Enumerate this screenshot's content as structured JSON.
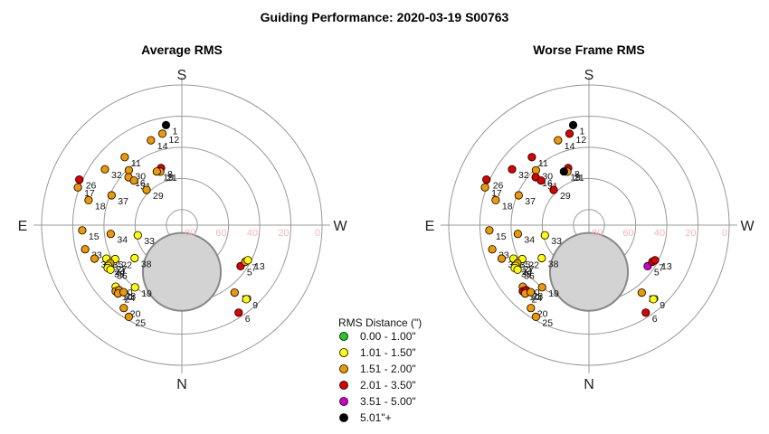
{
  "title": "Guiding Performance: 2020-03-19 S00763",
  "compass": {
    "top": "S",
    "bottom": "N",
    "left": "E",
    "right": "W"
  },
  "alt_ticks": [
    "80",
    "60",
    "40",
    "20",
    "0"
  ],
  "legend": {
    "title": "RMS Distance (\")",
    "items": [
      {
        "label": "0.00 - 1.00\"",
        "color": "#22cc22"
      },
      {
        "label": "1.01 - 1.50\"",
        "color": "#ffff00"
      },
      {
        "label": "1.51 - 2.00\"",
        "color": "#ee9900"
      },
      {
        "label": "2.01 - 3.50\"",
        "color": "#dd0000"
      },
      {
        "label": "3.51 - 5.00\"",
        "color": "#cc00cc"
      },
      {
        "label": "5.01\"+",
        "color": "#000000"
      }
    ]
  },
  "chart_data": [
    {
      "type": "scatter",
      "title": "Average RMS",
      "projection": "polar sky plot: azimuth in degrees (N=0 bottom, E=90 left, S=180 top, W=270 right), radius = 90 - altitude",
      "rlim": [
        0,
        90
      ],
      "shaded_region": {
        "azimuth": 0,
        "altitude": 60,
        "angular_radius": 25
      },
      "points": [
        {
          "label": "1",
          "az": 171,
          "alt": 25,
          "class": 6
        },
        {
          "label": "12",
          "az": 168,
          "alt": 30,
          "class": 3
        },
        {
          "label": "14",
          "az": 160,
          "alt": 32,
          "class": 3
        },
        {
          "label": "8",
          "az": 160,
          "alt": 51,
          "class": 4
        },
        {
          "label": "21",
          "az": 158,
          "alt": 53,
          "class": 3
        },
        {
          "label": "19",
          "az": 155,
          "alt": 52,
          "class": 3
        },
        {
          "label": "11",
          "az": 140,
          "alt": 33,
          "class": 3
        },
        {
          "label": "30",
          "az": 136,
          "alt": 41,
          "class": 3
        },
        {
          "label": "16",
          "az": 132,
          "alt": 44,
          "class": 3
        },
        {
          "label": "32",
          "az": 126,
          "alt": 29,
          "class": 3
        },
        {
          "label": "31",
          "az": 133,
          "alt": 48,
          "class": 3
        },
        {
          "label": "29",
          "az": 135,
          "alt": 58,
          "class": 3
        },
        {
          "label": "26",
          "az": 114,
          "alt": 18,
          "class": 4
        },
        {
          "label": "17",
          "az": 110,
          "alt": 19,
          "class": 3
        },
        {
          "label": "18",
          "az": 105,
          "alt": 28,
          "class": 3
        },
        {
          "label": "37",
          "az": 113,
          "alt": 41,
          "class": 3
        },
        {
          "label": "15",
          "az": 87,
          "alt": 26,
          "class": 3
        },
        {
          "label": "34",
          "az": 83,
          "alt": 44,
          "class": 3
        },
        {
          "label": "33",
          "az": 77,
          "alt": 61,
          "class": 2
        },
        {
          "label": "23",
          "az": 76,
          "alt": 26,
          "class": 3
        },
        {
          "label": "3",
          "az": 69,
          "alt": 30,
          "class": 3
        },
        {
          "label": "35",
          "az": 66,
          "alt": 37,
          "class": 2
        },
        {
          "label": "22",
          "az": 63,
          "alt": 42,
          "class": 2
        },
        {
          "label": "27",
          "az": 62,
          "alt": 38,
          "class": 3
        },
        {
          "label": "24",
          "az": 61,
          "alt": 36,
          "class": 2
        },
        {
          "label": "39",
          "az": 60,
          "alt": 35,
          "class": 2
        },
        {
          "label": "36",
          "az": 58,
          "alt": 36,
          "class": 2
        },
        {
          "label": "38",
          "az": 55,
          "alt": 53,
          "class": 2
        },
        {
          "label": "40",
          "az": 47,
          "alt": 32,
          "class": 2
        },
        {
          "label": "10",
          "az": 45,
          "alt": 30,
          "class": 3
        },
        {
          "label": "28",
          "az": 44,
          "alt": 32,
          "class": 3
        },
        {
          "label": "2",
          "az": 43,
          "alt": 30,
          "class": 3
        },
        {
          "label": "4",
          "az": 41,
          "alt": 33,
          "class": 3
        },
        {
          "label": "19",
          "az": 37,
          "alt": 40,
          "class": 2
        },
        {
          "label": "20",
          "az": 35,
          "alt": 25,
          "class": 3
        },
        {
          "label": "25",
          "az": 30,
          "alt": 22,
          "class": 3
        },
        {
          "label": "5",
          "az": 305,
          "alt": 44,
          "class": 4
        },
        {
          "label": "7",
          "az": 300,
          "alt": 43,
          "class": 3
        },
        {
          "label": "13",
          "az": 298,
          "alt": 42,
          "class": 2
        },
        {
          "label": "10",
          "az": 322,
          "alt": 35,
          "class": 3
        },
        {
          "label": "9",
          "az": 319,
          "alt": 27,
          "class": 2
        },
        {
          "label": "6",
          "az": 327,
          "alt": 23,
          "class": 4
        }
      ]
    },
    {
      "type": "scatter",
      "title": "Worse Frame RMS",
      "projection": "polar sky plot: azimuth in degrees (N=0 bottom, E=90 left, S=180 top, W=270 right), radius = 90 - altitude",
      "rlim": [
        0,
        90
      ],
      "shaded_region": {
        "azimuth": 0,
        "altitude": 60,
        "angular_radius": 25
      },
      "points": [
        {
          "label": "1",
          "az": 171,
          "alt": 25,
          "class": 6
        },
        {
          "label": "12",
          "az": 168,
          "alt": 30,
          "class": 4
        },
        {
          "label": "14",
          "az": 160,
          "alt": 32,
          "class": 3
        },
        {
          "label": "8",
          "az": 160,
          "alt": 51,
          "class": 4
        },
        {
          "label": "21",
          "az": 158,
          "alt": 53,
          "class": 3
        },
        {
          "label": "19",
          "az": 155,
          "alt": 52,
          "class": 6
        },
        {
          "label": "11",
          "az": 140,
          "alt": 33,
          "class": 4
        },
        {
          "label": "30",
          "az": 136,
          "alt": 41,
          "class": 3
        },
        {
          "label": "16",
          "az": 132,
          "alt": 44,
          "class": 4
        },
        {
          "label": "32",
          "az": 126,
          "alt": 29,
          "class": 4
        },
        {
          "label": "31",
          "az": 133,
          "alt": 48,
          "class": 4
        },
        {
          "label": "29",
          "az": 135,
          "alt": 58,
          "class": 4
        },
        {
          "label": "26",
          "az": 114,
          "alt": 18,
          "class": 4
        },
        {
          "label": "17",
          "az": 110,
          "alt": 19,
          "class": 3
        },
        {
          "label": "18",
          "az": 105,
          "alt": 28,
          "class": 3
        },
        {
          "label": "37",
          "az": 113,
          "alt": 41,
          "class": 3
        },
        {
          "label": "15",
          "az": 87,
          "alt": 26,
          "class": 3
        },
        {
          "label": "34",
          "az": 83,
          "alt": 44,
          "class": 3
        },
        {
          "label": "33",
          "az": 77,
          "alt": 61,
          "class": 2
        },
        {
          "label": "23",
          "az": 76,
          "alt": 26,
          "class": 3
        },
        {
          "label": "3",
          "az": 69,
          "alt": 30,
          "class": 3
        },
        {
          "label": "35",
          "az": 66,
          "alt": 37,
          "class": 2
        },
        {
          "label": "22",
          "az": 63,
          "alt": 42,
          "class": 2
        },
        {
          "label": "27",
          "az": 62,
          "alt": 38,
          "class": 3
        },
        {
          "label": "24",
          "az": 61,
          "alt": 36,
          "class": 2
        },
        {
          "label": "39",
          "az": 60,
          "alt": 35,
          "class": 2
        },
        {
          "label": "36",
          "az": 58,
          "alt": 36,
          "class": 2
        },
        {
          "label": "38",
          "az": 55,
          "alt": 53,
          "class": 2
        },
        {
          "label": "40",
          "az": 47,
          "alt": 32,
          "class": 3
        },
        {
          "label": "10",
          "az": 45,
          "alt": 30,
          "class": 4
        },
        {
          "label": "28",
          "az": 44,
          "alt": 32,
          "class": 4
        },
        {
          "label": "2",
          "az": 43,
          "alt": 30,
          "class": 3
        },
        {
          "label": "4",
          "az": 41,
          "alt": 33,
          "class": 3
        },
        {
          "label": "19",
          "az": 37,
          "alt": 40,
          "class": 3
        },
        {
          "label": "20",
          "az": 35,
          "alt": 25,
          "class": 3
        },
        {
          "label": "25",
          "az": 30,
          "alt": 22,
          "class": 3
        },
        {
          "label": "5",
          "az": 305,
          "alt": 44,
          "class": 5
        },
        {
          "label": "7",
          "az": 300,
          "alt": 43,
          "class": 4
        },
        {
          "label": "13",
          "az": 298,
          "alt": 42,
          "class": 4
        },
        {
          "label": "10",
          "az": 322,
          "alt": 35,
          "class": 3
        },
        {
          "label": "9",
          "az": 319,
          "alt": 27,
          "class": 2
        },
        {
          "label": "6",
          "az": 327,
          "alt": 23,
          "class": 4
        }
      ]
    }
  ]
}
